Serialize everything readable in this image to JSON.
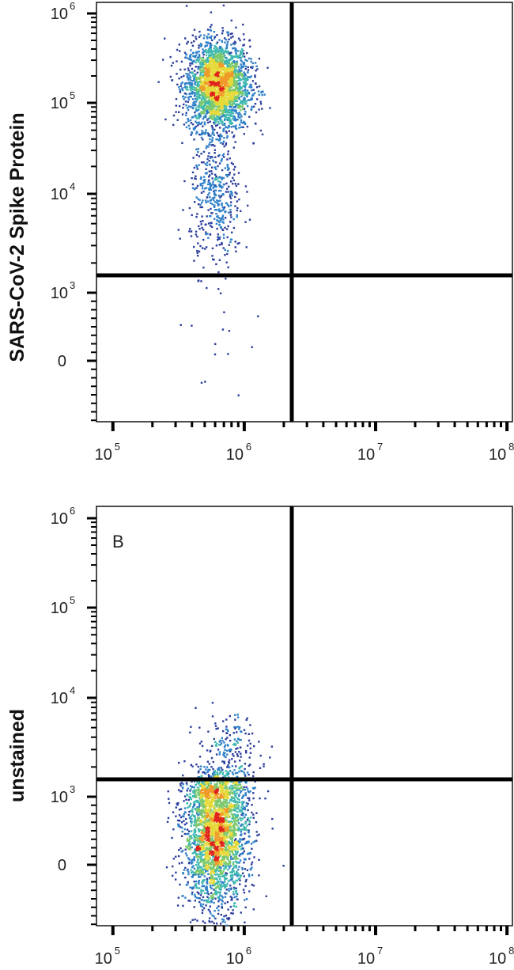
{
  "chart_data": [
    {
      "type": "scatter",
      "panel_label": "",
      "ylabel": "SARS-CoV-2 Spike Protein",
      "xlabel": "",
      "x_ticks": [
        {
          "base": "10",
          "exp": "5"
        },
        {
          "base": "10",
          "exp": "6"
        },
        {
          "base": "10",
          "exp": "7"
        },
        {
          "base": "10",
          "exp": "8"
        }
      ],
      "y_ticks": [
        {
          "base": "0",
          "exp": ""
        },
        {
          "base": "10",
          "exp": "3"
        },
        {
          "base": "10",
          "exp": "4"
        },
        {
          "base": "10",
          "exp": "5"
        },
        {
          "base": "10",
          "exp": "6"
        }
      ],
      "x_scale": "log",
      "y_scale": "biexponential",
      "x_range": [
        75000,
        110000000
      ],
      "quadrant_gate": {
        "x": 2300000,
        "y": 1500
      },
      "populations": [
        {
          "x_center": 620000,
          "y_center": 160000,
          "count": 2600,
          "spread_x_decades": 0.12,
          "spread_y_decades": 0.25
        },
        {
          "x_center": 600000,
          "y_center": 9000,
          "count": 420,
          "spread_x_decades": 0.1,
          "spread_y_decades": 0.35
        },
        {
          "x_center": 550000,
          "y_center": 400,
          "count": 14,
          "spread_x_decades": 0.12,
          "spread_y_decades": 0.6
        }
      ],
      "density_colors": [
        "#2b3d9c",
        "#2d7fc7",
        "#3fb9b0",
        "#7cc96e",
        "#e6d93a",
        "#f09a2a",
        "#e0231c"
      ]
    },
    {
      "type": "scatter",
      "panel_label": "B",
      "ylabel": "unstained",
      "xlabel": "",
      "x_ticks": [
        {
          "base": "10",
          "exp": "5"
        },
        {
          "base": "10",
          "exp": "6"
        },
        {
          "base": "10",
          "exp": "7"
        },
        {
          "base": "10",
          "exp": "8"
        }
      ],
      "y_ticks": [
        {
          "base": "0",
          "exp": ""
        },
        {
          "base": "10",
          "exp": "3"
        },
        {
          "base": "10",
          "exp": "4"
        },
        {
          "base": "10",
          "exp": "5"
        },
        {
          "base": "10",
          "exp": "6"
        }
      ],
      "x_scale": "log",
      "y_scale": "biexponential",
      "x_range": [
        75000,
        110000000
      ],
      "quadrant_gate": {
        "x": 2300000,
        "y": 1500
      },
      "populations": [
        {
          "x_center": 600000,
          "y_center": 500,
          "count": 2900,
          "spread_x_decades": 0.12,
          "spread_y_decades": 0.55
        },
        {
          "x_center": 750000,
          "y_center": 2800,
          "count": 200,
          "spread_x_decades": 0.12,
          "spread_y_decades": 0.2
        }
      ],
      "density_colors": [
        "#2b3d9c",
        "#2d7fc7",
        "#3fb9b0",
        "#7cc96e",
        "#e6d93a",
        "#f09a2a",
        "#e0231c"
      ]
    }
  ]
}
